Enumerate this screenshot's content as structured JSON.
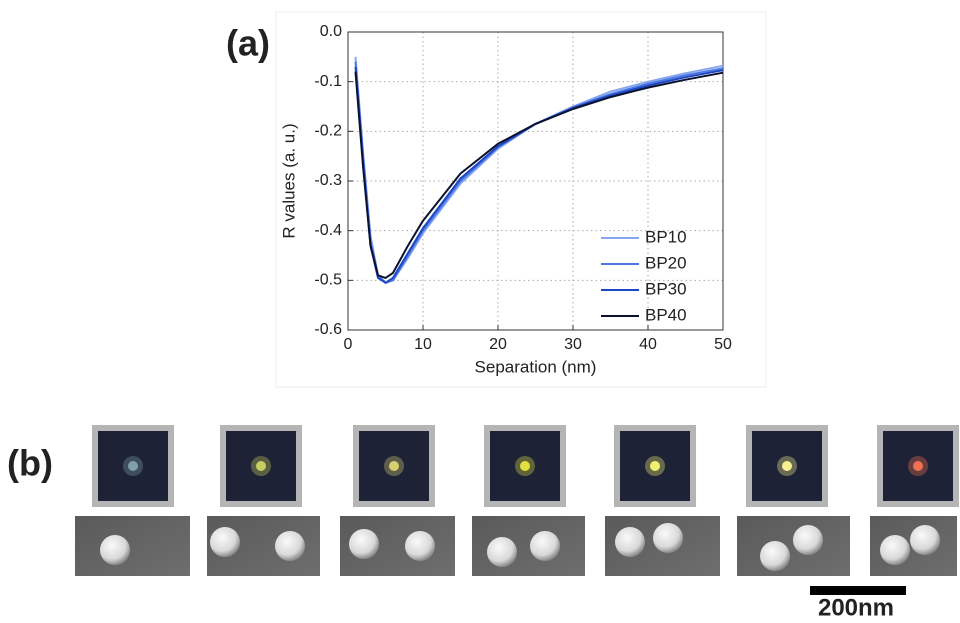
{
  "panel_a_label": "(a)",
  "panel_b_label": "(b)",
  "scale_bar_label": "200nm",
  "chart_data": {
    "type": "line",
    "xlabel": "Separation (nm)",
    "ylabel": "R values (a. u.)",
    "x": [
      1,
      2,
      3,
      4,
      5,
      6,
      8,
      10,
      15,
      20,
      25,
      30,
      35,
      40,
      45,
      50
    ],
    "series": [
      {
        "name": "BP10",
        "color": "#86a6f0",
        "values": [
          -0.05,
          -0.24,
          -0.41,
          -0.49,
          -0.505,
          -0.5,
          -0.455,
          -0.405,
          -0.305,
          -0.235,
          -0.185,
          -0.15,
          -0.12,
          -0.1,
          -0.083,
          -0.068
        ]
      },
      {
        "name": "BP20",
        "color": "#4c78e2",
        "values": [
          -0.06,
          -0.25,
          -0.42,
          -0.49,
          -0.505,
          -0.5,
          -0.45,
          -0.4,
          -0.3,
          -0.232,
          -0.185,
          -0.152,
          -0.125,
          -0.104,
          -0.087,
          -0.073
        ]
      },
      {
        "name": "BP30",
        "color": "#1c46c4",
        "values": [
          -0.07,
          -0.26,
          -0.43,
          -0.495,
          -0.505,
          -0.495,
          -0.445,
          -0.395,
          -0.295,
          -0.23,
          -0.185,
          -0.153,
          -0.128,
          -0.108,
          -0.091,
          -0.077
        ]
      },
      {
        "name": "BP40",
        "color": "#0b1230",
        "values": [
          -0.08,
          -0.27,
          -0.43,
          -0.49,
          -0.495,
          -0.485,
          -0.43,
          -0.38,
          -0.285,
          -0.225,
          -0.185,
          -0.155,
          -0.131,
          -0.112,
          -0.096,
          -0.082
        ]
      }
    ],
    "xlim": [
      0,
      50
    ],
    "xticks": [
      0,
      10,
      20,
      30,
      40,
      50
    ],
    "ylim": [
      -0.6,
      0
    ],
    "yticks": [
      -0.6,
      -0.5,
      -0.4,
      -0.3,
      -0.2,
      -0.1,
      {
        "value": 0,
        "label": "0.0"
      }
    ],
    "grid": true,
    "legend": "lower right"
  }
}
